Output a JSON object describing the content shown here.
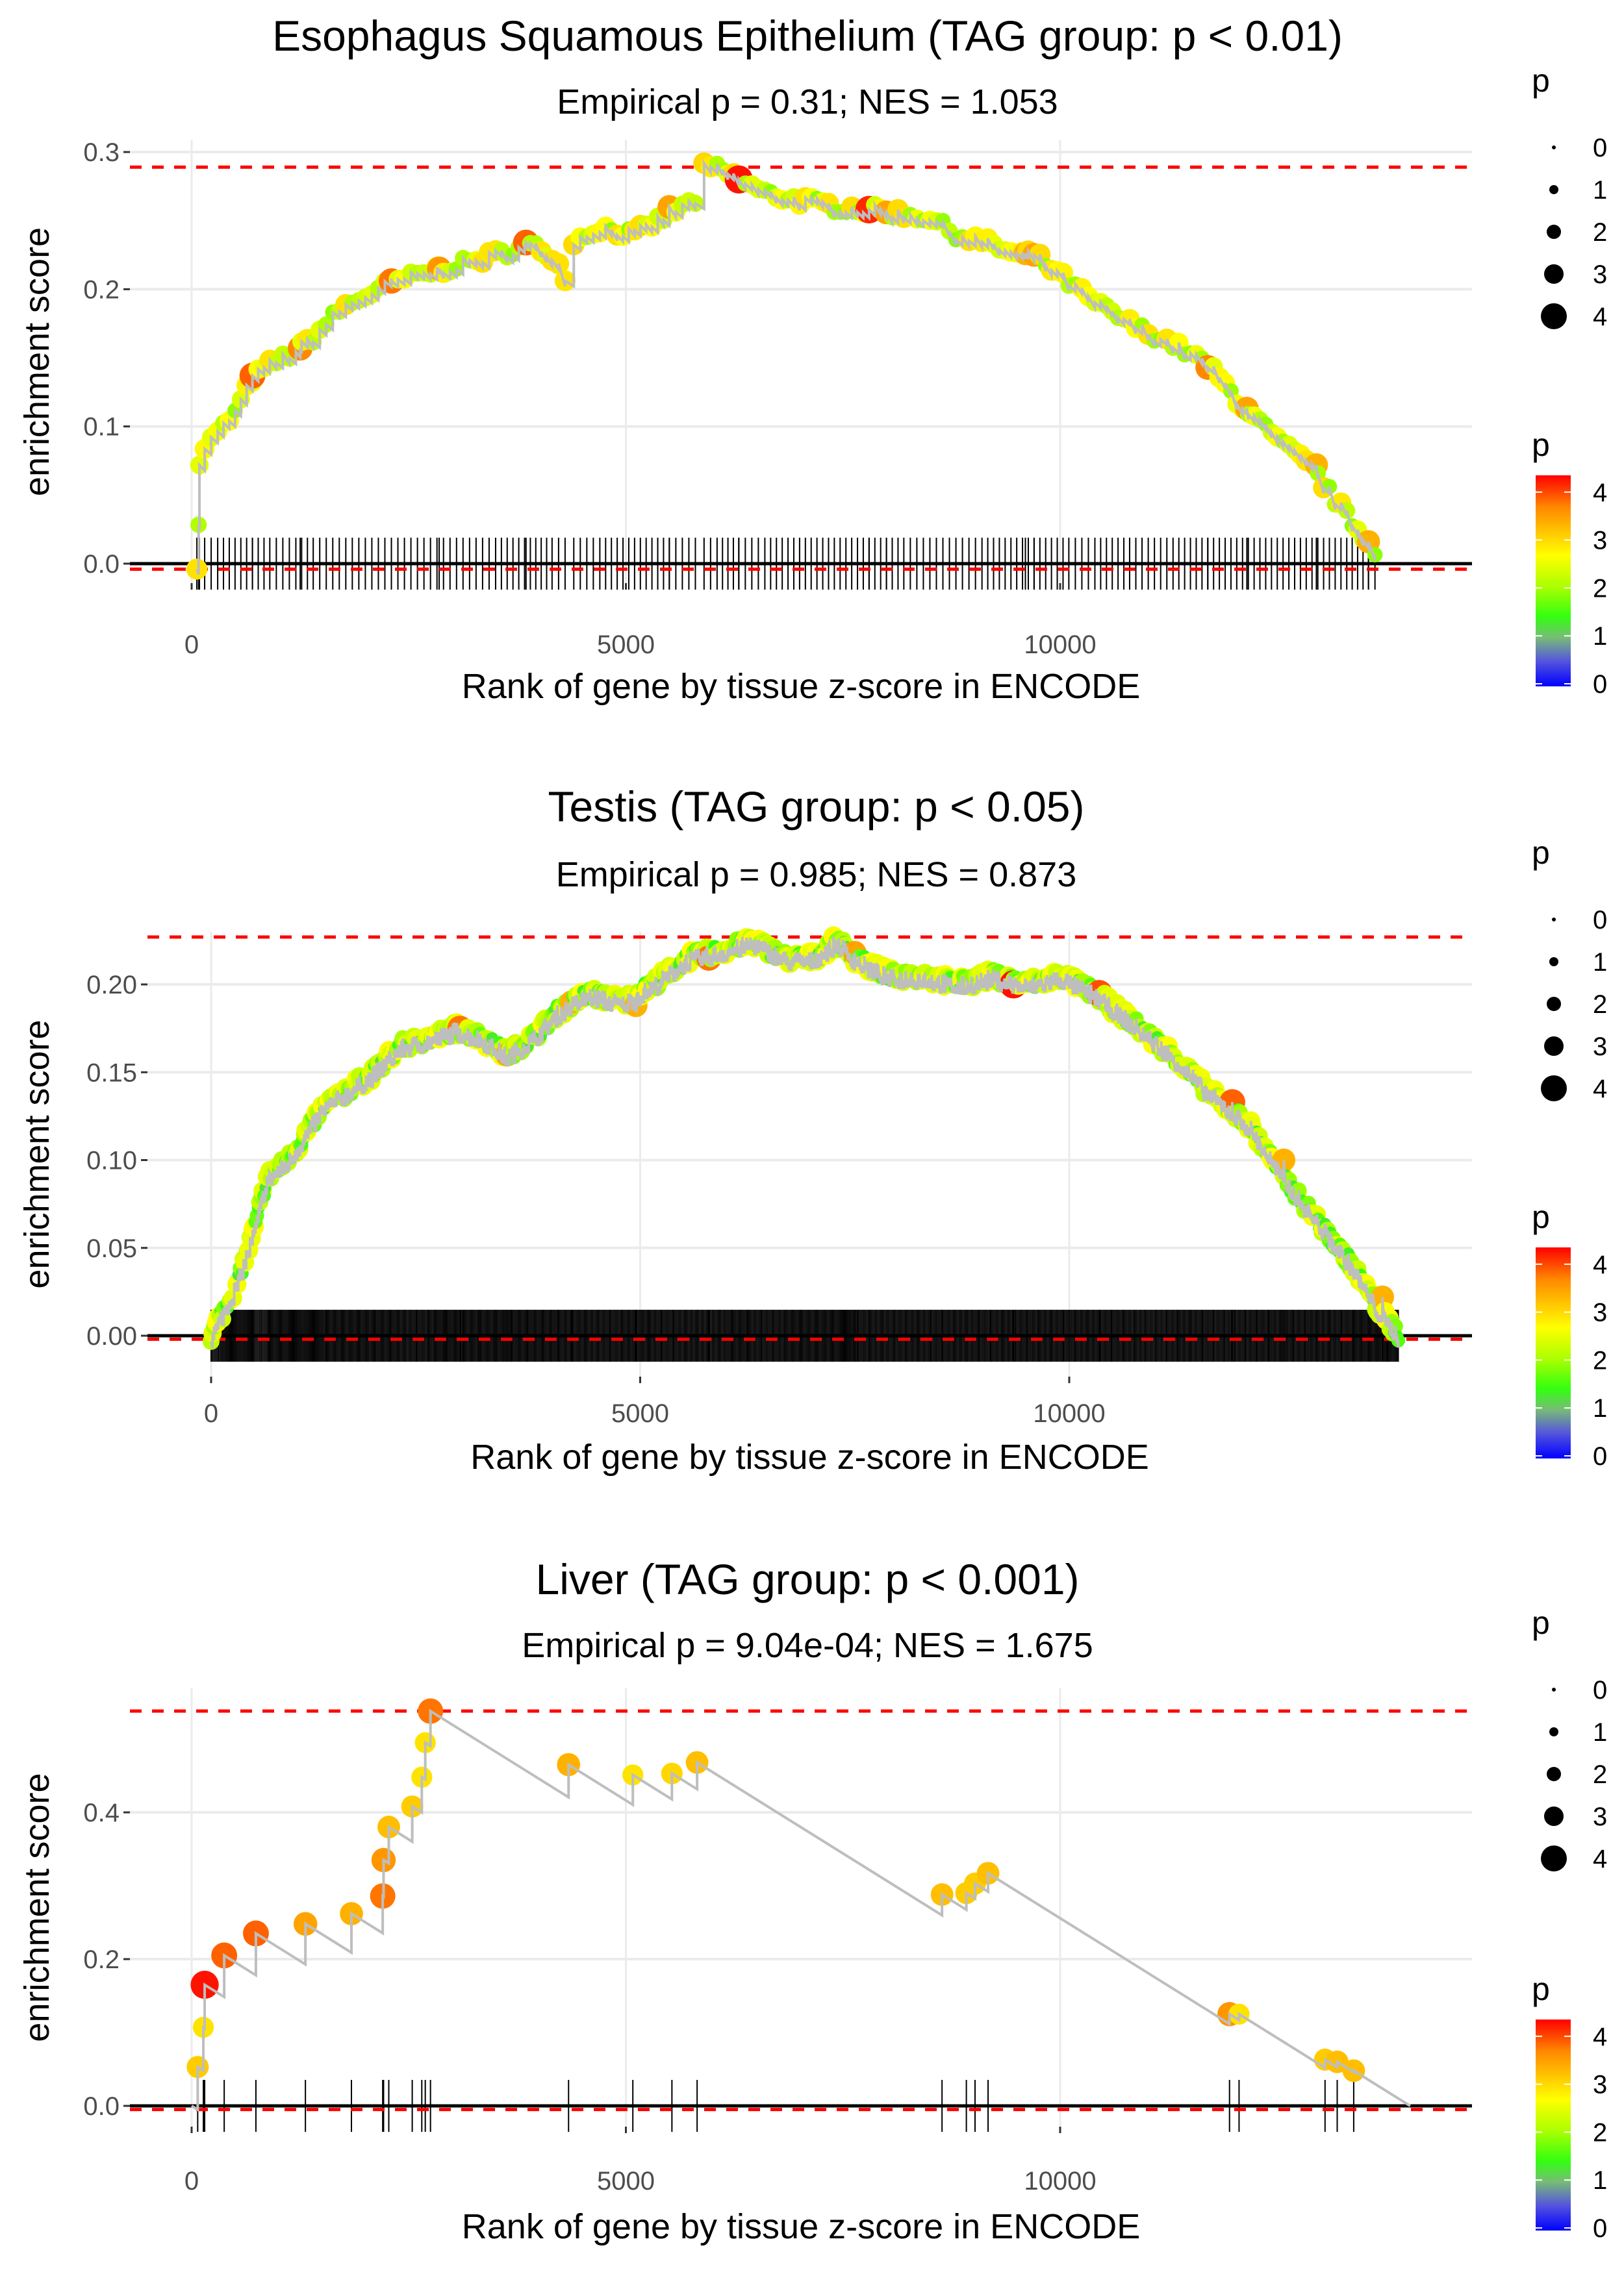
{
  "chart_data": [
    {
      "type": "line",
      "title": "Esophagus Squamous Epithelium (TAG group: p < 0.01)",
      "subtitle": "Empirical p = 0.31; NES = 1.053",
      "xlabel": "Rank of gene by tissue z-score in ENCODE",
      "ylabel": "enrichment score",
      "xticks": [
        0,
        5000,
        10000
      ],
      "xtick_labels": [
        "0",
        "5000",
        "10000"
      ],
      "yticks": [
        0,
        0.1,
        0.2,
        0.3
      ],
      "ytick_labels": [
        "0.0",
        "0.1",
        "0.2",
        "0.3"
      ],
      "xlim": [
        -700,
        14150
      ],
      "ylim": [
        -0.015,
        0.305
      ],
      "max_es_line": 0.289,
      "min_es_line": -0.004,
      "dense": true,
      "curve": [
        [
          60,
          0.0
        ],
        [
          80,
          0.03
        ],
        [
          90,
          0.07
        ],
        [
          150,
          0.085
        ],
        [
          300,
          0.095
        ],
        [
          500,
          0.11
        ],
        [
          700,
          0.135
        ],
        [
          900,
          0.145
        ],
        [
          1200,
          0.155
        ],
        [
          1400,
          0.165
        ],
        [
          1700,
          0.185
        ],
        [
          2000,
          0.195
        ],
        [
          2300,
          0.205
        ],
        [
          2600,
          0.21
        ],
        [
          2900,
          0.215
        ],
        [
          3200,
          0.22
        ],
        [
          3500,
          0.225
        ],
        [
          3900,
          0.232
        ],
        [
          4150,
          0.225
        ],
        [
          4300,
          0.21
        ],
        [
          4400,
          0.235
        ],
        [
          4700,
          0.245
        ],
        [
          5100,
          0.24
        ],
        [
          5500,
          0.255
        ],
        [
          5800,
          0.265
        ],
        [
          5900,
          0.288
        ],
        [
          6050,
          0.288
        ],
        [
          6300,
          0.28
        ],
        [
          6600,
          0.27
        ],
        [
          7000,
          0.265
        ],
        [
          7400,
          0.26
        ],
        [
          7800,
          0.258
        ],
        [
          8200,
          0.255
        ],
        [
          8500,
          0.252
        ],
        [
          8800,
          0.24
        ],
        [
          9100,
          0.235
        ],
        [
          9500,
          0.225
        ],
        [
          9700,
          0.225
        ],
        [
          10100,
          0.205
        ],
        [
          10400,
          0.19
        ],
        [
          10800,
          0.175
        ],
        [
          11300,
          0.16
        ],
        [
          11700,
          0.145
        ],
        [
          12100,
          0.115
        ],
        [
          12500,
          0.09
        ],
        [
          12900,
          0.07
        ],
        [
          13300,
          0.035
        ],
        [
          13550,
          0.015
        ],
        [
          13700,
          0.005
        ]
      ],
      "highlight_points": [
        [
          700,
          0.137,
          3.8
        ],
        [
          1250,
          0.157,
          3.6
        ],
        [
          2300,
          0.206,
          3.7
        ],
        [
          2850,
          0.215,
          3.5
        ],
        [
          3850,
          0.234,
          3.8
        ],
        [
          5500,
          0.26,
          3.4
        ],
        [
          6300,
          0.28,
          4.2
        ],
        [
          7800,
          0.258,
          4.1
        ],
        [
          8000,
          0.256,
          3.4
        ],
        [
          9600,
          0.226,
          3.3
        ],
        [
          9700,
          0.225,
          3.4
        ],
        [
          11700,
          0.143,
          3.6
        ],
        [
          12150,
          0.113,
          3.4
        ],
        [
          12950,
          0.072,
          3.3
        ],
        [
          13550,
          0.016,
          3.3
        ]
      ],
      "legend": {
        "size_title": "p",
        "size_labels": [
          "0",
          "1",
          "2",
          "3",
          "4"
        ],
        "color_title": "p",
        "color_labels": [
          "4",
          "3",
          "2",
          "1",
          "0"
        ]
      }
    },
    {
      "type": "line",
      "title": "Testis (TAG group: p < 0.05)",
      "subtitle": "Empirical p = 0.985; NES = 0.873",
      "xlabel": "Rank of gene by tissue z-score in ENCODE",
      "ylabel": "enrichment score",
      "xticks": [
        0,
        5000,
        10000
      ],
      "xtick_labels": [
        "0",
        "5000",
        "10000"
      ],
      "yticks": [
        0,
        0.05,
        0.1,
        0.15,
        0.2
      ],
      "ytick_labels": [
        "0.00",
        "0.05",
        "0.10",
        "0.15",
        "0.20"
      ],
      "xlim": [
        -700,
        14100
      ],
      "ylim": [
        -0.012,
        0.23
      ],
      "max_es_line": 0.227,
      "min_es_line": -0.002,
      "dense": true,
      "curve": [
        [
          0,
          0
        ],
        [
          100,
          0.01
        ],
        [
          300,
          0.03
        ],
        [
          500,
          0.06
        ],
        [
          650,
          0.09
        ],
        [
          900,
          0.1
        ],
        [
          1100,
          0.115
        ],
        [
          1300,
          0.13
        ],
        [
          1600,
          0.14
        ],
        [
          1900,
          0.15
        ],
        [
          2200,
          0.165
        ],
        [
          2600,
          0.17
        ],
        [
          2850,
          0.175
        ],
        [
          3150,
          0.17
        ],
        [
          3450,
          0.16
        ],
        [
          3750,
          0.17
        ],
        [
          4050,
          0.185
        ],
        [
          4400,
          0.195
        ],
        [
          4800,
          0.19
        ],
        [
          5150,
          0.2
        ],
        [
          5550,
          0.215
        ],
        [
          6000,
          0.22
        ],
        [
          6300,
          0.225
        ],
        [
          6700,
          0.215
        ],
        [
          7000,
          0.215
        ],
        [
          7300,
          0.225
        ],
        [
          7500,
          0.215
        ],
        [
          7900,
          0.205
        ],
        [
          8300,
          0.205
        ],
        [
          8700,
          0.2
        ],
        [
          9100,
          0.205
        ],
        [
          9500,
          0.2
        ],
        [
          9900,
          0.205
        ],
        [
          10300,
          0.195
        ],
        [
          10700,
          0.18
        ],
        [
          11200,
          0.16
        ],
        [
          11600,
          0.14
        ],
        [
          12100,
          0.12
        ],
        [
          12500,
          0.09
        ],
        [
          12900,
          0.065
        ],
        [
          13300,
          0.04
        ],
        [
          13600,
          0.015
        ],
        [
          13850,
          0.0
        ]
      ],
      "highlight_points": [
        [
          2900,
          0.175,
          3.7
        ],
        [
          3450,
          0.16,
          3.4
        ],
        [
          4200,
          0.19,
          3.3
        ],
        [
          4950,
          0.188,
          3.3
        ],
        [
          5800,
          0.215,
          3.7
        ],
        [
          7500,
          0.218,
          3.4
        ],
        [
          9350,
          0.2,
          4.2
        ],
        [
          10350,
          0.195,
          3.9
        ],
        [
          11900,
          0.133,
          3.8
        ],
        [
          12500,
          0.1,
          3.3
        ],
        [
          13650,
          0.022,
          3.3
        ]
      ],
      "legend": {
        "size_title": "p",
        "size_labels": [
          "0",
          "1",
          "2",
          "3",
          "4"
        ],
        "color_title": "p",
        "color_labels": [
          "4",
          "3",
          "2",
          "1",
          "0"
        ]
      }
    },
    {
      "type": "line",
      "title": "Liver (TAG group: p < 0.001)",
      "subtitle": "Empirical p = 9.04e-04; NES = 1.675",
      "xlabel": "Rank of gene by tissue z-score in ENCODE",
      "ylabel": "enrichment score",
      "xticks": [
        0,
        5000,
        10000
      ],
      "xtick_labels": [
        "0",
        "5000",
        "10000"
      ],
      "yticks": [
        0,
        0.2,
        0.4
      ],
      "ytick_labels": [
        "0.0",
        "0.2",
        "0.4"
      ],
      "xlim": [
        -700,
        14150
      ],
      "ylim": [
        -0.03,
        0.57
      ],
      "max_es_line": 0.538,
      "min_es_line": -0.005,
      "dense": false,
      "end_rank": 14030,
      "hits": [
        [
          70,
          0.053,
          3.1
        ],
        [
          135,
          0.107,
          2.9
        ],
        [
          150,
          0.165,
          4.2
        ],
        [
          375,
          0.205,
          3.8
        ],
        [
          740,
          0.235,
          3.8
        ],
        [
          1310,
          0.248,
          3.4
        ],
        [
          1840,
          0.262,
          3.3
        ],
        [
          2200,
          0.286,
          3.7
        ],
        [
          2210,
          0.335,
          3.5
        ],
        [
          2270,
          0.38,
          3.2
        ],
        [
          2540,
          0.408,
          3.1
        ],
        [
          2650,
          0.448,
          2.9
        ],
        [
          2690,
          0.495,
          2.9
        ],
        [
          2750,
          0.538,
          3.7
        ],
        [
          4340,
          0.465,
          3.3
        ],
        [
          5080,
          0.451,
          2.9
        ],
        [
          5530,
          0.453,
          3.0
        ],
        [
          5820,
          0.468,
          3.2
        ],
        [
          8640,
          0.288,
          3.2
        ],
        [
          8920,
          0.29,
          3.1
        ],
        [
          9020,
          0.303,
          3.1
        ],
        [
          9170,
          0.317,
          3.2
        ],
        [
          11950,
          0.125,
          3.5
        ],
        [
          12060,
          0.125,
          2.9
        ],
        [
          13050,
          0.063,
          3.1
        ],
        [
          13190,
          0.06,
          3.2
        ],
        [
          13380,
          0.048,
          3.2
        ]
      ],
      "legend": {
        "size_title": "p",
        "size_labels": [
          "0",
          "1",
          "2",
          "3",
          "4"
        ],
        "color_title": "p",
        "color_labels": [
          "4",
          "3",
          "2",
          "1",
          "0"
        ]
      }
    }
  ],
  "colors": {
    "max_line": "#ff0000",
    "es_line": "#bebebe",
    "grid": "#ebebeb",
    "zero_line": "#000000"
  }
}
